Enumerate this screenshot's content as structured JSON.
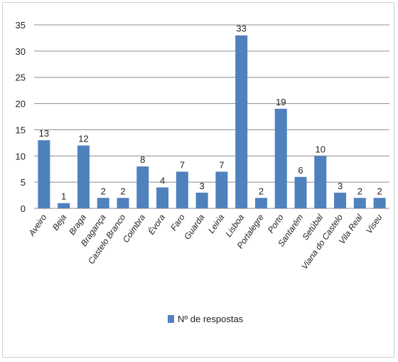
{
  "chart_data": {
    "type": "bar",
    "categories": [
      "Aveiro",
      "Beja",
      "Braga",
      "Bragança",
      "Castelo Branco",
      "Coimbra",
      "Évora",
      "Faro",
      "Guarda",
      "Leiria",
      "Lisboa",
      "Portalegre",
      "Porto",
      "Santarém",
      "Setúbal",
      "Viana do Castelo",
      "Vila Real",
      "Viseu"
    ],
    "series": [
      {
        "name": "Nº de respostas",
        "values": [
          13,
          1,
          12,
          2,
          2,
          8,
          4,
          7,
          3,
          7,
          33,
          2,
          19,
          6,
          10,
          3,
          2,
          2
        ]
      }
    ],
    "ylim": [
      0,
      35
    ],
    "yticks": [
      0,
      5,
      10,
      15,
      20,
      25,
      30,
      35
    ],
    "grid": true,
    "legend": "bottom",
    "colors": {
      "bar": "#4f81bd",
      "grid": "#8c8c8c"
    }
  }
}
